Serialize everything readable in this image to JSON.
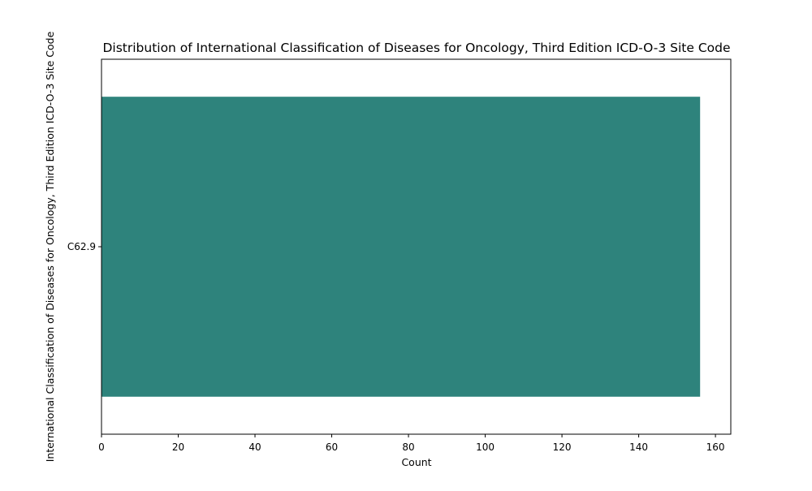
{
  "chart_data": {
    "type": "bar",
    "orientation": "horizontal",
    "title": "Distribution of International Classification of Diseases for Oncology, Third Edition ICD-O-3 Site Code",
    "xlabel": "Count",
    "ylabel": "International Classification of Diseases for Oncology, Third Edition ICD-O-3 Site Code",
    "categories": [
      "C62.9"
    ],
    "values": [
      156
    ],
    "xlim": [
      0,
      164
    ],
    "xticks": [
      0,
      20,
      40,
      60,
      80,
      100,
      120,
      140,
      160
    ],
    "grid": false,
    "bar_color": "#2e837c"
  }
}
